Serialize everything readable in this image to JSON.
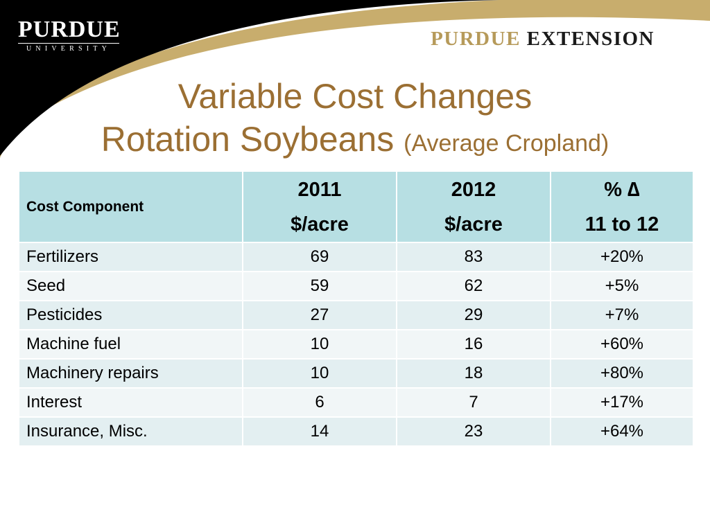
{
  "header": {
    "logo_main": "PURDUE",
    "logo_sub": "UNIVERSITY",
    "extension_part1": "PURDUE",
    "extension_part2": "EXTENSION"
  },
  "title": {
    "line1": "Variable Cost Changes",
    "line2": "Rotation Soybeans",
    "line2_sub": "(Average Cropland)"
  },
  "table": {
    "headers": {
      "col1": "Cost Component",
      "col2_l1": "2011",
      "col2_l2": "$/acre",
      "col3_l1": "2012",
      "col3_l2": "$/acre",
      "col4_l1": "% ∆",
      "col4_l2": "11 to 12"
    },
    "rows": [
      {
        "component": "Fertilizers",
        "y2011": "69",
        "y2012": "83",
        "change": "+20%"
      },
      {
        "component": "Seed",
        "y2011": "59",
        "y2012": "62",
        "change": "+5%"
      },
      {
        "component": "Pesticides",
        "y2011": "27",
        "y2012": "29",
        "change": "+7%"
      },
      {
        "component": "Machine fuel",
        "y2011": "10",
        "y2012": "16",
        "change": "+60%"
      },
      {
        "component": "Machinery repairs",
        "y2011": "10",
        "y2012": "18",
        "change": "+80%"
      },
      {
        "component": "Interest",
        "y2011": "6",
        "y2012": "7",
        "change": "+17%"
      },
      {
        "component": "Insurance, Misc.",
        "y2011": "14",
        "y2012": "23",
        "change": "+64%"
      }
    ]
  },
  "colors": {
    "title": "#9b6f33",
    "gold": "#b69a5a",
    "header_bg": "#b7dfe3",
    "row_odd": "#e3eff1",
    "row_even": "#f1f6f7"
  }
}
